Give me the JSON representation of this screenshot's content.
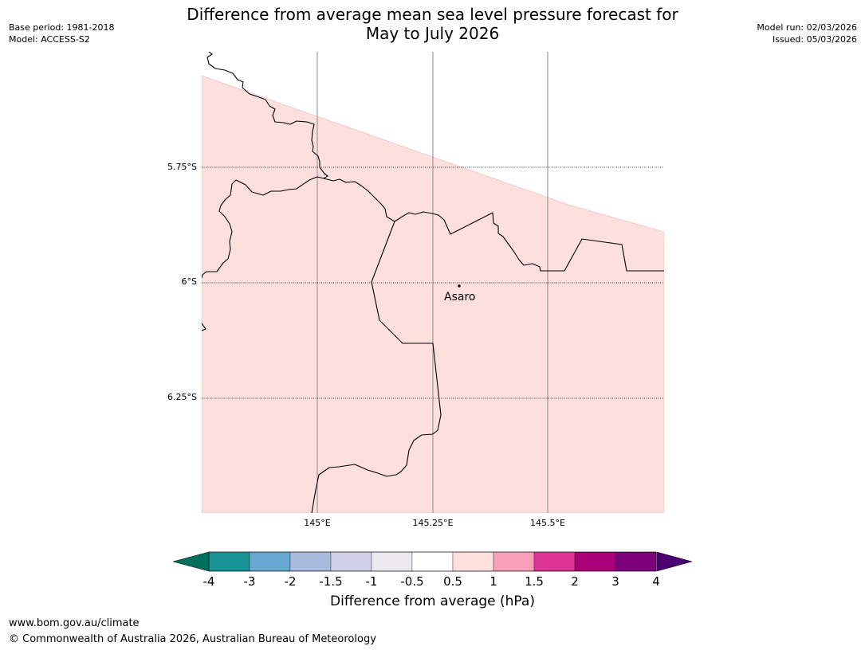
{
  "title": {
    "line1": "Difference from average mean sea level pressure forecast for",
    "line2": "May to July 2026"
  },
  "meta": {
    "base_period": "Base period: 1981-2018",
    "model": "Model: ACCESS-S2",
    "model_run": "Model run: 02/03/2026",
    "issued": "Issued: 05/03/2026"
  },
  "map": {
    "lat_labels": [
      "5.75°S",
      "6°S",
      "6.25°S"
    ],
    "lon_labels": [
      "145°E",
      "145.25°E",
      "145.5°E"
    ],
    "place": "Asaro",
    "fill_category": "0.5 to 1",
    "fill_color": "#fde0de"
  },
  "colorbar": {
    "title": "Difference from average (hPa)",
    "ticks": [
      "-4",
      "-3",
      "-2",
      "-1.5",
      "-1",
      "-0.5",
      "0.5",
      "1",
      "1.5",
      "2",
      "3",
      "4"
    ],
    "below_color": "#00705a",
    "above_color": "#4a0070",
    "colors": [
      "#1a9396",
      "#66a8d0",
      "#a5bcde",
      "#d0d0e6",
      "#ebe9ee",
      "#ffffff",
      "#fde0de",
      "#f8a0b8",
      "#dc3596",
      "#aa0078",
      "#7c007c"
    ]
  },
  "footer": {
    "url": "www.bom.gov.au/climate",
    "copyright": "© Commonwealth of Australia 2026, Australian Bureau of Meteorology"
  }
}
